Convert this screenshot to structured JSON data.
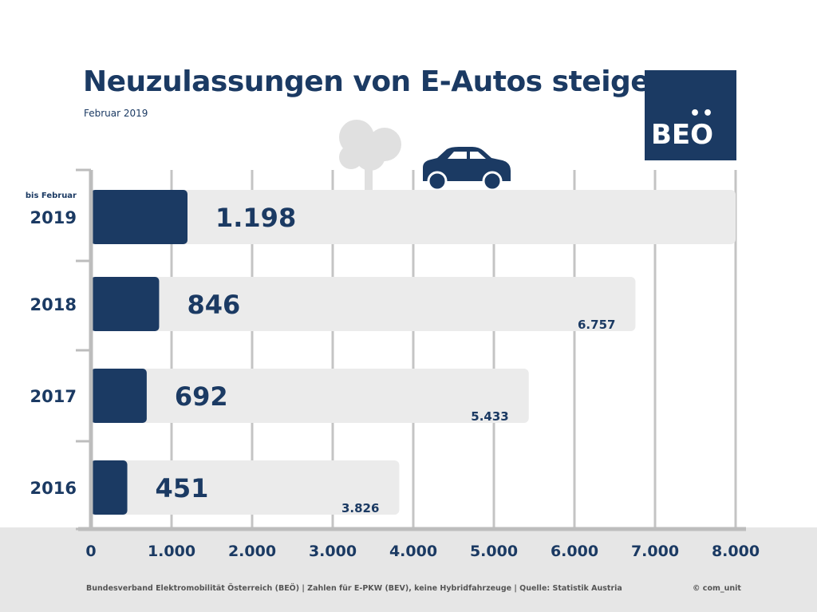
{
  "header": {
    "title": "Neuzulassungen von E-Autos steigen",
    "subtitle": "Februar 2019"
  },
  "logo": {
    "dots": "••",
    "text": "BEO"
  },
  "footer": {
    "source": "Bundesverband Elektromobilität Österreich (BEÖ) | Zahlen für E-PKW (BEV), keine Hybridfahrzeuge | Quelle: Statistik Austria",
    "credit": "© com_unit"
  },
  "icons": [
    "tree-icon",
    "car-icon"
  ],
  "colors": {
    "primary": "#1b3a63",
    "track": "#ebebeb",
    "grid": "#c4c4c4",
    "ground": "#e6e6e6"
  },
  "chart_data": {
    "type": "bar",
    "orientation": "horizontal",
    "categories": [
      "2019",
      "2018",
      "2017",
      "2016"
    ],
    "category_notes": [
      "bis Februar",
      "",
      "",
      ""
    ],
    "series": [
      {
        "values": [
          1198,
          846,
          692,
          451
        ],
        "labels": [
          "1.198",
          "846",
          "692",
          "451"
        ]
      },
      {
        "values": [
          null,
          6757,
          5433,
          3826
        ],
        "labels": [
          "",
          "6.757",
          "5.433",
          "3.826"
        ]
      }
    ],
    "xlim": [
      0,
      8000
    ],
    "xticks": [
      "0",
      "1.000",
      "2.000",
      "3.000",
      "4.000",
      "5.000",
      "6.000",
      "7.000",
      "8.000"
    ],
    "grid": true
  }
}
